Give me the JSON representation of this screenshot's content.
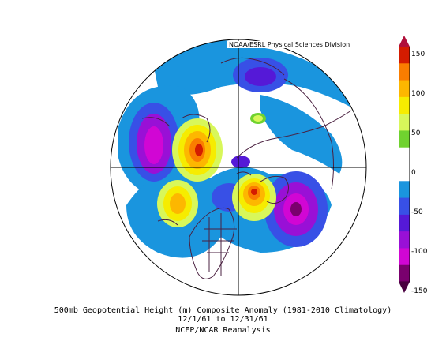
{
  "credit": "NOAA/ESRL Physical Sciences Division",
  "caption": {
    "line1": "500mb Geopotential Height (m) Composite Anomaly (1981-2010 Climatology)",
    "line2": "12/1/61  to 12/31/61",
    "line3": "NCEP/NCAR Reanalysis"
  },
  "colorbar": {
    "range": [
      -150,
      150
    ],
    "ticks": [
      "150",
      "100",
      "50",
      "0",
      "-50",
      "-100",
      "-150"
    ],
    "colors": [
      "#d41c00",
      "#fa7d00",
      "#fdb700",
      "#f6ec00",
      "#d8f75a",
      "#70d22f",
      "#ffffff",
      "#ffffff",
      "#1a95de",
      "#3850e6",
      "#5519d7",
      "#9910d6",
      "#d106d4",
      "#7a006e"
    ]
  },
  "colors": {
    "coastline": "#4a2040",
    "grid": "#000000",
    "ocean_fill": "#ffffff"
  }
}
